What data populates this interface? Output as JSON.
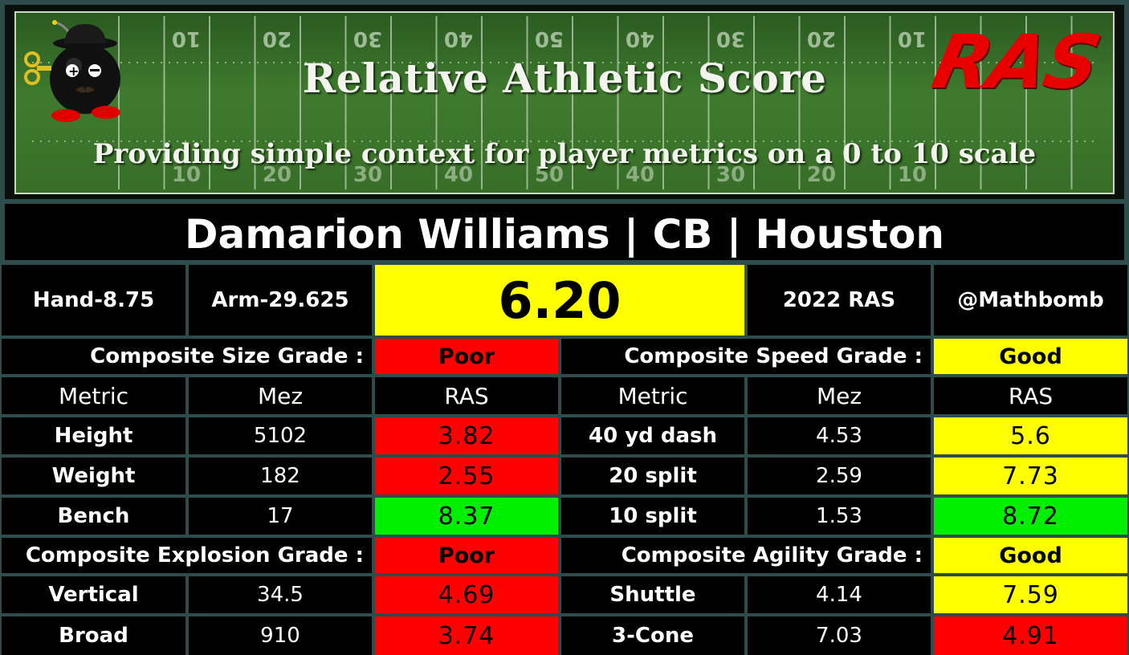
{
  "banner": {
    "title": "Relative Athletic Score",
    "subtitle": "Providing simple context for player metrics on a 0 to 10 scale",
    "logo": "RAS",
    "yard_numbers_top": [
      "10",
      "20",
      "30",
      "40",
      "50",
      "40",
      "30",
      "20",
      "10"
    ],
    "yard_numbers_bottom": [
      "10",
      "20",
      "30",
      "40",
      "50",
      "40",
      "30",
      "20",
      "10"
    ]
  },
  "player": {
    "header": "Damarion Williams | CB | Houston"
  },
  "info": {
    "hand": "Hand-8.75",
    "arm": "Arm-29.625",
    "score": "6.20",
    "year_label": "2022 RAS",
    "handle": "@Mathbomb"
  },
  "colors": {
    "good": "#ffff00",
    "poor": "#ff0000",
    "great": "#00ee00",
    "cell_bg": "#000000",
    "grid_line": "#2e4c4c",
    "field": "#3f7a2e"
  },
  "composite": {
    "size_label": "Composite Size Grade :",
    "size_grade": "Poor",
    "speed_label": "Composite Speed Grade :",
    "speed_grade": "Good",
    "explosion_label": "Composite Explosion Grade :",
    "explosion_grade": "Poor",
    "agility_label": "Composite Agility Grade :",
    "agility_grade": "Good"
  },
  "headers": {
    "metric": "Metric",
    "mez": "Mez",
    "ras": "RAS"
  },
  "rows_left": [
    {
      "metric": "Height",
      "mez": "5102",
      "ras": "3.82",
      "rating": "poor"
    },
    {
      "metric": "Weight",
      "mez": "182",
      "ras": "2.55",
      "rating": "poor"
    },
    {
      "metric": "Bench",
      "mez": "17",
      "ras": "8.37",
      "rating": "great"
    }
  ],
  "rows_right": [
    {
      "metric": "40 yd dash",
      "mez": "4.53",
      "ras": "5.6",
      "rating": "good"
    },
    {
      "metric": "20 split",
      "mez": "2.59",
      "ras": "7.73",
      "rating": "good"
    },
    {
      "metric": "10 split",
      "mez": "1.53",
      "ras": "8.72",
      "rating": "great"
    }
  ],
  "rows_left_bottom": [
    {
      "metric": "Vertical",
      "mez": "34.5",
      "ras": "4.69",
      "rating": "poor"
    },
    {
      "metric": "Broad",
      "mez": "910",
      "ras": "3.74",
      "rating": "poor"
    }
  ],
  "rows_right_bottom": [
    {
      "metric": "Shuttle",
      "mez": "4.14",
      "ras": "7.59",
      "rating": "good"
    },
    {
      "metric": "3-Cone",
      "mez": "7.03",
      "ras": "4.91",
      "rating": "poor"
    }
  ]
}
